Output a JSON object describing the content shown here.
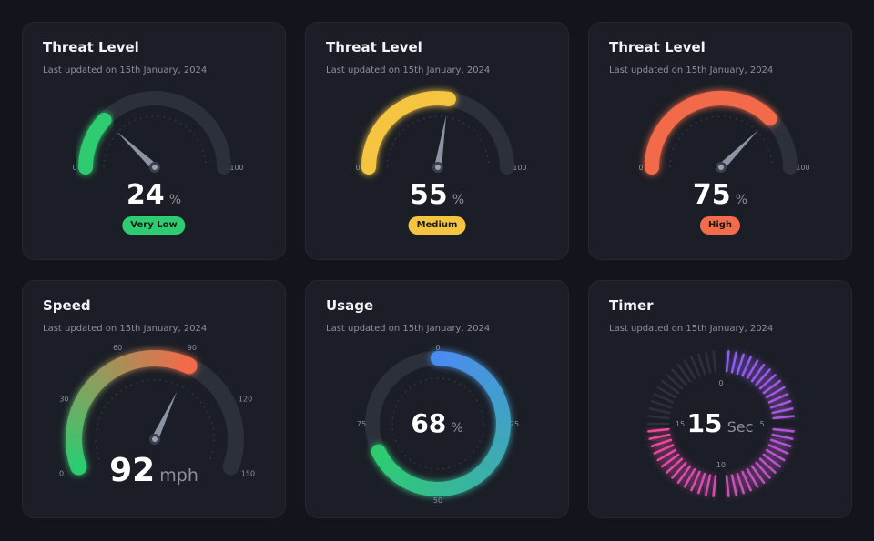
{
  "cards": [
    {
      "title": "Threat Level",
      "subtitle": "Last updated on 15th January, 2024",
      "value": 24,
      "unit": "%",
      "min_label": "0",
      "max_label": "100",
      "level": 24,
      "badge": "Very Low",
      "color": "#2ecc71"
    },
    {
      "title": "Threat Level",
      "subtitle": "Last updated on 15th January, 2024",
      "value": 55,
      "unit": "%",
      "min_label": "0",
      "max_label": "100",
      "level": 55,
      "badge": "Medium",
      "color": "#f5c542"
    },
    {
      "title": "Threat Level",
      "subtitle": "Last updated on 15th January, 2024",
      "value": 75,
      "unit": "%",
      "min_label": "0",
      "max_label": "100",
      "level": 75,
      "badge": "High",
      "color": "#f26b4a"
    },
    {
      "title": "Speed",
      "subtitle": "Last updated on 15th January, 2024",
      "value": 92,
      "unit": "mph",
      "max": 150,
      "ticks": [
        "0",
        "30",
        "60",
        "90",
        "120",
        "150"
      ],
      "color_start": "#2ecc71",
      "color_end": "#f26b4a"
    },
    {
      "title": "Usage",
      "subtitle": "Last updated on 15th January, 2024",
      "value": 68,
      "unit": "%",
      "ticks": [
        "0",
        "25",
        "50",
        "75"
      ],
      "color_start": "#4a8cf0",
      "color_end": "#2ecc71"
    },
    {
      "title": "Timer",
      "subtitle": "Last updated on 15th January, 2024",
      "value": 15,
      "unit": "Sec",
      "ticks": [
        "0",
        "5",
        "10",
        "15"
      ],
      "color_start": "#8a5cf6",
      "color_end": "#ec4899"
    }
  ]
}
